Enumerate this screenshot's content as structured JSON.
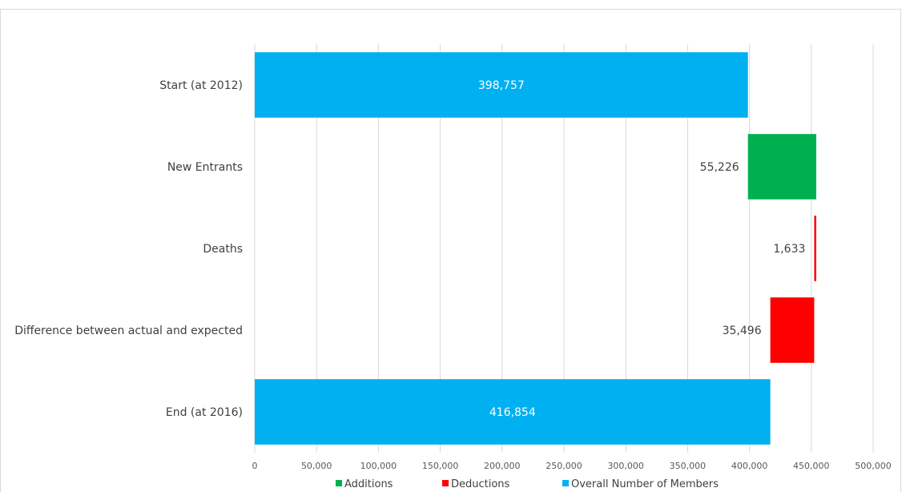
{
  "chart_data": {
    "type": "bar",
    "orientation": "horizontal",
    "style": "waterfall",
    "categories": [
      "Start (at 2012)",
      "New Entrants",
      "Deaths",
      "Difference between actual and expected",
      "End (at 2016)"
    ],
    "bars": [
      {
        "category": "Start (at 2012)",
        "series": "Overall Number of Members",
        "base": 0,
        "value": 398757,
        "label": "398,757"
      },
      {
        "category": "New Entrants",
        "series": "Additions",
        "base": 398757,
        "value": 55226,
        "label": "55,226"
      },
      {
        "category": "Deaths",
        "series": "Deductions",
        "base": 452350,
        "value": 1633,
        "label": "1,633"
      },
      {
        "category": "Difference between actual and expected",
        "series": "Deductions",
        "base": 416854,
        "value": 35496,
        "label": "35,496"
      },
      {
        "category": "End (at 2016)",
        "series": "Overall Number of Members",
        "base": 0,
        "value": 416854,
        "label": "416,854"
      }
    ],
    "series": [
      {
        "name": "Additions",
        "color": "#00b050"
      },
      {
        "name": "Deductions",
        "color": "#ff0000"
      },
      {
        "name": "Overall Number of Members",
        "color": "#00b0f0"
      }
    ],
    "xlim": [
      0,
      500000
    ],
    "x_ticks": [
      0,
      50000,
      100000,
      150000,
      200000,
      250000,
      300000,
      350000,
      400000,
      450000,
      500000
    ],
    "x_tick_labels": [
      "0",
      "50,000",
      "100,000",
      "150,000",
      "200,000",
      "250,000",
      "300,000",
      "350,000",
      "400,000",
      "450,000",
      "500,000"
    ],
    "grid": "vertical",
    "legend_position": "bottom",
    "title": "",
    "xlabel": "",
    "ylabel": ""
  }
}
